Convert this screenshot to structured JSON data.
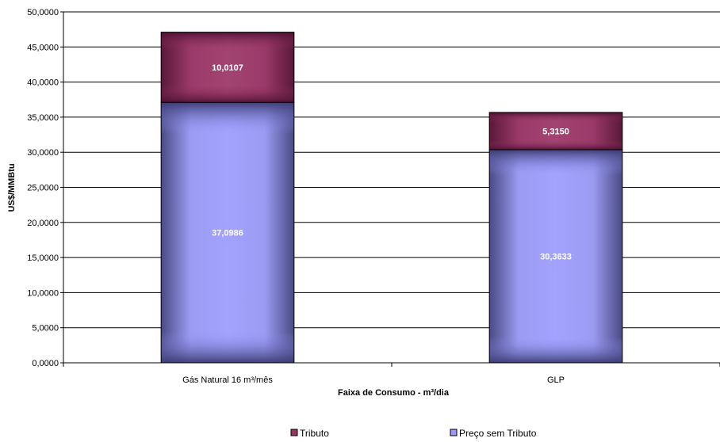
{
  "chart_data": {
    "type": "bar",
    "stacked": true,
    "categories": [
      "Gás Natural  16 m³/mês",
      "GLP"
    ],
    "series": [
      {
        "name": "Preço sem Tributo",
        "values": [
          37.0986,
          30.3633
        ],
        "labels": [
          "37,0986",
          "30,3633"
        ],
        "color": "#9999ff"
      },
      {
        "name": "Tributo",
        "values": [
          10.0107,
          5.315
        ],
        "labels": [
          "10,0107",
          "5,3150"
        ],
        "color": "#993366"
      }
    ],
    "xlabel": "Faixa de Consumo  - m³/dia",
    "ylabel": "US$/MMBtu",
    "ylim": [
      0,
      50
    ],
    "yticks": [
      0,
      5,
      10,
      15,
      20,
      25,
      30,
      35,
      40,
      45,
      50
    ],
    "ytick_labels": [
      "0,0000",
      "5,0000",
      "10,0000",
      "15,0000",
      "20,0000",
      "25,0000",
      "30,0000",
      "35,0000",
      "40,0000",
      "45,0000",
      "50,0000"
    ],
    "grid": true,
    "legend": {
      "position": "bottom",
      "entries": [
        {
          "name": "Tributo",
          "color": "#993366"
        },
        {
          "name": "Preço sem Tributo",
          "color": "#9999ff"
        }
      ]
    }
  }
}
